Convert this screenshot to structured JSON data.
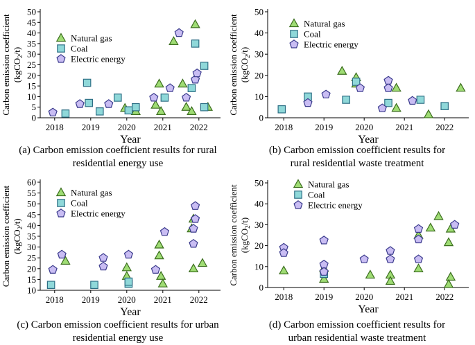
{
  "figure": {
    "captions": [
      [
        "(a) Carbon emission coefficient results for rural",
        "residential energy use"
      ],
      [
        "(b) Carbon emission coefficient results for",
        "rural residential waste treatment"
      ],
      [
        "(c) Carbon emission coefficient results for urban",
        "residential energy use"
      ],
      [
        "(d) Carbon emission coefficient results for",
        "urban residential waste treatment"
      ]
    ],
    "colors": {
      "natural_gas": "#9fdc74",
      "coal": "#8fd8d9",
      "electric_energy": "#c9bdf3",
      "stroke": "#3a3a8c",
      "gas_stroke": "#3c6e1f",
      "coal_stroke": "#2e6f85"
    }
  },
  "chart_data": [
    {
      "type": "scatter",
      "title": "(a) Carbon emission coefficient results for rural residential energy use",
      "xlabel": "Year",
      "ylabel": "Carbon emission coefficient",
      "ylabel2": "(kgCO2/t)",
      "ylim": [
        0,
        50
      ],
      "yticks": [
        0,
        5,
        10,
        15,
        20,
        25,
        30,
        35,
        40,
        45,
        50
      ],
      "xlim": [
        2017.6,
        2022.6
      ],
      "xticks": [
        2018,
        2019,
        2020,
        2021,
        2022
      ],
      "legend": [
        "Natural gas",
        "Coal",
        "Electric energy"
      ],
      "series": [
        {
          "name": "Natural gas",
          "points": [
            [
              2019.95,
              4.5
            ],
            [
              2020.25,
              3
            ],
            [
              2020.8,
              6
            ],
            [
              2020.9,
              16
            ],
            [
              2020.95,
              3
            ],
            [
              2021.3,
              36
            ],
            [
              2021.55,
              16
            ],
            [
              2021.65,
              5
            ],
            [
              2021.8,
              3
            ],
            [
              2021.9,
              44
            ],
            [
              2022.25,
              5
            ]
          ]
        },
        {
          "name": "Coal",
          "points": [
            [
              2018.3,
              2
            ],
            [
              2018.9,
              16.5
            ],
            [
              2018.95,
              7
            ],
            [
              2019.25,
              3
            ],
            [
              2019.75,
              9.5
            ],
            [
              2020.05,
              3.5
            ],
            [
              2020.25,
              5
            ],
            [
              2021.05,
              9.5
            ],
            [
              2021.8,
              14
            ],
            [
              2021.9,
              35
            ],
            [
              2022.15,
              5
            ],
            [
              2022.15,
              24.5
            ]
          ]
        },
        {
          "name": "Electric energy",
          "points": [
            [
              2017.95,
              2.5
            ],
            [
              2018.7,
              6.5
            ],
            [
              2019.5,
              6.5
            ],
            [
              2020.75,
              9.5
            ],
            [
              2021.2,
              14
            ],
            [
              2021.45,
              40
            ],
            [
              2021.65,
              9.5
            ],
            [
              2021.9,
              18
            ],
            [
              2021.95,
              21
            ]
          ]
        }
      ]
    },
    {
      "type": "scatter",
      "title": "(b) Carbon emission coefficient results for rural residential waste treatment",
      "xlabel": "Year",
      "ylabel": "Carbon emission coefficient",
      "ylabel2": "(kgCO2/t)",
      "ylim": [
        0,
        50
      ],
      "yticks": [
        0,
        10,
        20,
        30,
        40,
        50
      ],
      "xlim": [
        2017.6,
        2022.6
      ],
      "xticks": [
        2018,
        2019,
        2020,
        2021,
        2022
      ],
      "legend": [
        "Natural gas",
        "Coal",
        "Electric energy"
      ],
      "series": [
        {
          "name": "Natural gas",
          "points": [
            [
              2019.45,
              22
            ],
            [
              2019.8,
              19
            ],
            [
              2019.8,
              16
            ],
            [
              2020.8,
              14
            ],
            [
              2020.8,
              4.5
            ],
            [
              2021.6,
              1.5
            ],
            [
              2022.4,
              14
            ]
          ]
        },
        {
          "name": "Coal",
          "points": [
            [
              2017.95,
              4
            ],
            [
              2018.6,
              10
            ],
            [
              2019.55,
              8.5
            ],
            [
              2019.8,
              17
            ],
            [
              2020.6,
              7
            ],
            [
              2021.4,
              8.5
            ],
            [
              2022.0,
              5.5
            ]
          ]
        },
        {
          "name": "Electric energy",
          "points": [
            [
              2018.6,
              7
            ],
            [
              2019.05,
              11
            ],
            [
              2019.9,
              14
            ],
            [
              2020.45,
              4.5
            ],
            [
              2020.6,
              14
            ],
            [
              2020.6,
              17.5
            ],
            [
              2021.2,
              8
            ]
          ]
        }
      ]
    },
    {
      "type": "scatter",
      "title": "(c) Carbon emission coefficient results for urban residential energy use",
      "xlabel": "Year",
      "ylabel": "Carbon emission coefficient",
      "ylabel2": "(kgCO2/t)",
      "ylim": [
        10,
        60
      ],
      "yticks": [
        10,
        15,
        20,
        25,
        30,
        35,
        40,
        45,
        50,
        55,
        60
      ],
      "xlim": [
        2017.6,
        2022.6
      ],
      "xticks": [
        2018,
        2019,
        2020,
        2021,
        2022
      ],
      "legend": [
        "Natural gas",
        "Coal",
        "Electric energy"
      ],
      "series": [
        {
          "name": "Natural gas",
          "points": [
            [
              2018.3,
              23.5
            ],
            [
              2020.0,
              20.5
            ],
            [
              2020.0,
              16.5
            ],
            [
              2020.9,
              31
            ],
            [
              2020.9,
              26
            ],
            [
              2020.95,
              16.5
            ],
            [
              2021.0,
              13
            ],
            [
              2021.8,
              38.5
            ],
            [
              2021.85,
              43
            ],
            [
              2021.85,
              20
            ],
            [
              2022.1,
              22.5
            ]
          ]
        },
        {
          "name": "Coal",
          "points": [
            [
              2017.9,
              12.5
            ],
            [
              2019.1,
              12.5
            ],
            [
              2020.05,
              13
            ],
            [
              2020.05,
              14
            ]
          ]
        },
        {
          "name": "Electric energy",
          "points": [
            [
              2017.95,
              19.5
            ],
            [
              2018.2,
              26.5
            ],
            [
              2019.35,
              25
            ],
            [
              2019.35,
              21
            ],
            [
              2020.05,
              26.5
            ],
            [
              2020.8,
              19.5
            ],
            [
              2021.05,
              37
            ],
            [
              2021.85,
              31.5
            ],
            [
              2021.85,
              38.5
            ],
            [
              2021.9,
              43
            ],
            [
              2021.9,
              49
            ]
          ]
        }
      ]
    },
    {
      "type": "scatter",
      "title": "(d) Carbon emission coefficient results for urban residential waste treatment",
      "xlabel": "Year",
      "ylabel": "Carbon emission coefficient",
      "ylabel2": "(kgCO2/t)",
      "ylim": [
        0,
        50
      ],
      "yticks": [
        0,
        10,
        20,
        30,
        40,
        50
      ],
      "xlim": [
        2017.6,
        2022.6
      ],
      "xticks": [
        2018,
        2019,
        2020,
        2021,
        2022
      ],
      "legend": [
        "Natural gas",
        "Coal",
        "Electric energy"
      ],
      "series": [
        {
          "name": "Natural gas",
          "points": [
            [
              2018.0,
              8
            ],
            [
              2019.0,
              9
            ],
            [
              2019.0,
              4
            ],
            [
              2020.15,
              6
            ],
            [
              2020.65,
              6
            ],
            [
              2020.65,
              3
            ],
            [
              2021.35,
              9
            ],
            [
              2021.35,
              25
            ],
            [
              2021.65,
              28.5
            ],
            [
              2021.85,
              34
            ],
            [
              2022.1,
              21.5
            ],
            [
              2022.15,
              28
            ],
            [
              2022.15,
              5
            ],
            [
              2022.1,
              1.5
            ]
          ]
        },
        {
          "name": "Coal",
          "points": [
            [
              2019.0,
              6.5
            ]
          ]
        },
        {
          "name": "Electric energy",
          "points": [
            [
              2018.0,
              19
            ],
            [
              2018.0,
              16.5
            ],
            [
              2019.0,
              22.5
            ],
            [
              2019.0,
              11
            ],
            [
              2019.0,
              7.5
            ],
            [
              2020.0,
              13.5
            ],
            [
              2020.65,
              17.5
            ],
            [
              2020.65,
              13.5
            ],
            [
              2021.35,
              23
            ],
            [
              2021.35,
              13.5
            ],
            [
              2021.35,
              28
            ],
            [
              2022.25,
              30
            ]
          ]
        }
      ]
    }
  ]
}
